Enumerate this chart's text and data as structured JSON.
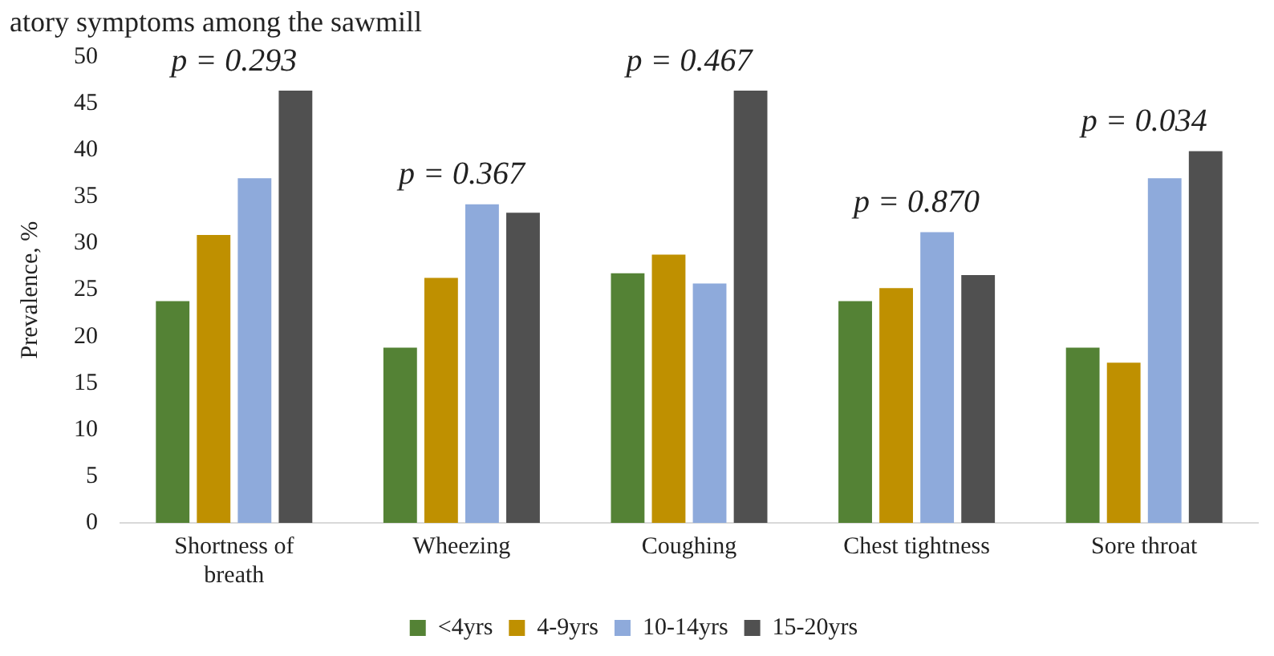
{
  "chart_data": {
    "type": "bar",
    "title": "atory symptoms among the sawmill",
    "ylabel": "Prevalence, %",
    "categories": [
      "Shortness of breath",
      "Wheezing",
      "Coughing",
      "Chest tightness",
      "Sore throat"
    ],
    "series": [
      {
        "name": "<4yrs",
        "color": "#548235",
        "values": [
          23.8,
          18.8,
          26.8,
          23.8,
          18.8
        ]
      },
      {
        "name": "4-9yrs",
        "color": "#bf9000",
        "values": [
          30.9,
          26.3,
          28.8,
          25.2,
          17.2
        ]
      },
      {
        "name": "10-14yrs",
        "color": "#8eaadb",
        "values": [
          37,
          34.2,
          25.7,
          31.2,
          37
        ]
      },
      {
        "name": "15-20yrs",
        "color": "#505050",
        "values": [
          46.4,
          33.3,
          46.4,
          26.6,
          39.9
        ]
      }
    ],
    "ylim": [
      0,
      50
    ],
    "yticks": [
      0,
      5,
      10,
      15,
      20,
      25,
      30,
      35,
      40,
      45,
      50
    ],
    "grid": false,
    "legend": "bottom",
    "annotations": [
      "p = 0.293",
      "p = 0.367",
      "p = 0.467",
      "p = 0.870",
      "p = 0.034"
    ]
  }
}
